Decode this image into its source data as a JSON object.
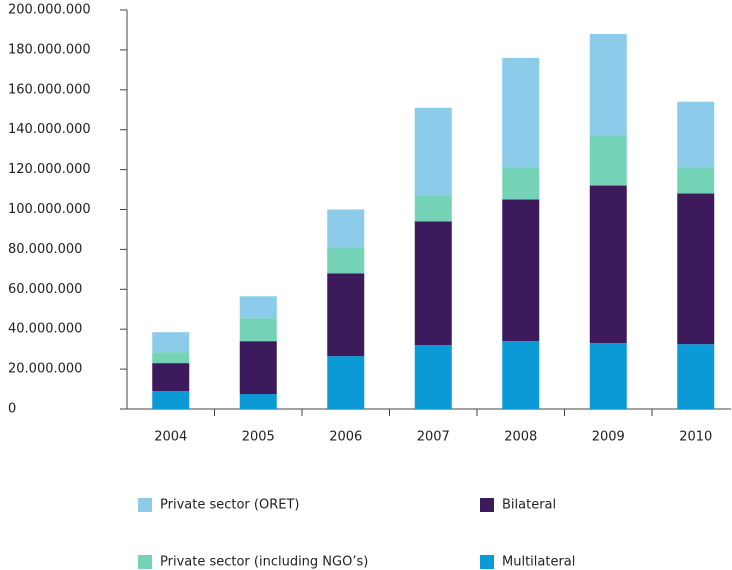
{
  "chart_data": {
    "type": "bar",
    "stacked": true,
    "categories": [
      "2004",
      "2005",
      "2006",
      "2007",
      "2008",
      "2009",
      "2010"
    ],
    "series": [
      {
        "name": "Multilateral",
        "color": "#0b9ad6",
        "values": [
          9000000,
          7500000,
          26500000,
          32000000,
          34000000,
          33000000,
          32500000
        ]
      },
      {
        "name": "Bilateral",
        "color": "#3d1a5b",
        "values": [
          14000000,
          26500000,
          41500000,
          62000000,
          71000000,
          79000000,
          75500000
        ]
      },
      {
        "name": "Private sector (including NGO’s)",
        "color": "#74d2b6",
        "values": [
          5500000,
          11500000,
          13000000,
          13000000,
          16000000,
          25000000,
          13000000
        ]
      },
      {
        "name": "Private sector (ORET)",
        "color": "#8ccbea",
        "values": [
          10000000,
          11000000,
          19000000,
          44000000,
          55000000,
          51000000,
          33000000
        ]
      }
    ],
    "ylim": [
      0,
      200000000
    ],
    "yticks": [
      0,
      {
        "value": 20000000,
        "label": "20.000.000"
      },
      {
        "value": 40000000,
        "label": "40.000.000"
      },
      {
        "value": 60000000,
        "label": "60.000.000"
      },
      {
        "value": 80000000,
        "label": "80.000.000"
      },
      {
        "value": 100000000,
        "label": "100.000.000"
      },
      {
        "value": 120000000,
        "label": "120.000.000"
      },
      {
        "value": 140000000,
        "label": "140.000.000"
      },
      {
        "value": 160000000,
        "label": "160.000.000"
      },
      {
        "value": 180000000,
        "label": "180.000.000"
      },
      {
        "value": 200000000,
        "label": "200.000.000"
      }
    ],
    "grid": false
  }
}
